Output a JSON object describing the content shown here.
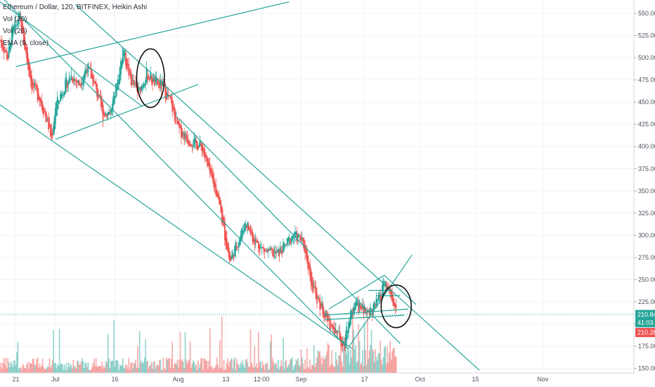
{
  "legend": {
    "title": "Ethereum / Dollar, 120, BITFINEX, Heikin Ashi",
    "studies": [
      "Vol (20)",
      "Vol (20)",
      "EMA (9, close)"
    ]
  },
  "colors": {
    "up": "#26a69a",
    "down": "#ef5350",
    "trendline": "#26a69a",
    "marker": "#111111",
    "price_line": "#26a69a",
    "axis_text": "#4c525e"
  },
  "chart_data": {
    "type": "candlestick",
    "title": "Ethereum / Dollar, 120, BITFINEX, Heikin Ashi",
    "xlabel": "",
    "ylabel": "",
    "ylim": [
      145,
      565
    ],
    "y_ticks": [
      "550.00",
      "525.00",
      "500.00",
      "475.00",
      "450.00",
      "425.00",
      "400.00",
      "375.00",
      "350.00",
      "325.00",
      "300.00",
      "275.00",
      "250.00",
      "225.00",
      "200.00",
      "175.00",
      "150.00"
    ],
    "y_tick_values": [
      550,
      525,
      500,
      475,
      450,
      425,
      400,
      375,
      350,
      325,
      300,
      275,
      250,
      225,
      200,
      175,
      150
    ],
    "x_ticks": [
      "21",
      "Jul",
      "16",
      "Aug",
      "13",
      "12:00",
      "Sep",
      "17",
      "Oct",
      "15",
      "Nov"
    ],
    "x_tick_dates": [
      "2018-06-21",
      "2018-07-01",
      "2018-07-16",
      "2018-08-01",
      "2018-08-13",
      "2018-08-22",
      "2018-09-01",
      "2018-09-17",
      "2018-10-01",
      "2018-10-15",
      "2018-11-01"
    ],
    "x_range": [
      "2018-06-17",
      "2018-11-24"
    ],
    "price_tags": [
      {
        "label": "210.84",
        "value": 210.84,
        "color": "#26a69a"
      },
      {
        "label": "41:03",
        "value": 201.5,
        "color": "#26a69a"
      },
      {
        "label": "210.28",
        "value": 190.5,
        "color": "#ef5350"
      }
    ],
    "price_path": [
      [
        "2018-06-17",
        520
      ],
      [
        "2018-06-19",
        500
      ],
      [
        "2018-06-20",
        528
      ],
      [
        "2018-06-22",
        545
      ],
      [
        "2018-06-23",
        518
      ],
      [
        "2018-06-25",
        470
      ],
      [
        "2018-06-27",
        455
      ],
      [
        "2018-06-29",
        428
      ],
      [
        "2018-06-30",
        408
      ],
      [
        "2018-07-01",
        445
      ],
      [
        "2018-07-03",
        465
      ],
      [
        "2018-07-05",
        480
      ],
      [
        "2018-07-07",
        470
      ],
      [
        "2018-07-09",
        490
      ],
      [
        "2018-07-11",
        468
      ],
      [
        "2018-07-13",
        436
      ],
      [
        "2018-07-15",
        440
      ],
      [
        "2018-07-17",
        480
      ],
      [
        "2018-07-18",
        510
      ],
      [
        "2018-07-20",
        475
      ],
      [
        "2018-07-22",
        460
      ],
      [
        "2018-07-24",
        482
      ],
      [
        "2018-07-26",
        472
      ],
      [
        "2018-07-28",
        468
      ],
      [
        "2018-07-30",
        450
      ],
      [
        "2018-08-01",
        420
      ],
      [
        "2018-08-03",
        410
      ],
      [
        "2018-08-05",
        404
      ],
      [
        "2018-08-07",
        400
      ],
      [
        "2018-08-09",
        368
      ],
      [
        "2018-08-11",
        345
      ],
      [
        "2018-08-12",
        318
      ],
      [
        "2018-08-14",
        270
      ],
      [
        "2018-08-16",
        292
      ],
      [
        "2018-08-18",
        315
      ],
      [
        "2018-08-20",
        296
      ],
      [
        "2018-08-22",
        285
      ],
      [
        "2018-08-24",
        280
      ],
      [
        "2018-08-26",
        279
      ],
      [
        "2018-08-28",
        288
      ],
      [
        "2018-08-30",
        300
      ],
      [
        "2018-09-01",
        295
      ],
      [
        "2018-09-02",
        284
      ],
      [
        "2018-09-04",
        240
      ],
      [
        "2018-09-06",
        220
      ],
      [
        "2018-09-08",
        202
      ],
      [
        "2018-09-10",
        190
      ],
      [
        "2018-09-12",
        178
      ],
      [
        "2018-09-13",
        205
      ],
      [
        "2018-09-15",
        222
      ],
      [
        "2018-09-17",
        214
      ],
      [
        "2018-09-19",
        216
      ],
      [
        "2018-09-21",
        230
      ],
      [
        "2018-09-22",
        246
      ],
      [
        "2018-09-24",
        228
      ],
      [
        "2018-09-25",
        212
      ]
    ],
    "annotations": [
      {
        "type": "trendline",
        "from": [
          "2018-06-21",
          490
        ],
        "to": [
          "2018-08-29",
          563
        ]
      },
      {
        "type": "trendline",
        "from": [
          "2018-07-01",
          408
        ],
        "to": [
          "2018-08-06",
          470
        ]
      },
      {
        "type": "trendline",
        "from": [
          "2018-06-17",
          570
        ],
        "to": [
          "2018-09-13",
          172
        ]
      },
      {
        "type": "trendline",
        "from": [
          "2018-06-17",
          447
        ],
        "to": [
          "2018-09-14",
          172
        ]
      },
      {
        "type": "trendline",
        "from": [
          "2018-06-17",
          563
        ],
        "to": [
          "2018-07-23",
          445
        ]
      },
      {
        "type": "trendline",
        "from": [
          "2018-07-06",
          560
        ],
        "to": [
          "2018-10-16",
          148
        ]
      },
      {
        "type": "trendline",
        "from": [
          "2018-08-01",
          432
        ],
        "to": [
          "2018-09-26",
          178
        ]
      },
      {
        "type": "trendline",
        "from": [
          "2018-09-08",
          217
        ],
        "to": [
          "2018-09-22",
          255
        ]
      },
      {
        "type": "trendline",
        "from": [
          "2018-09-22",
          255
        ],
        "to": [
          "2018-09-30",
          222
        ]
      },
      {
        "type": "trendline",
        "from": [
          "2018-09-13",
          174
        ],
        "to": [
          "2018-09-29",
          278
        ]
      },
      {
        "type": "trendline",
        "from": [
          "2018-09-07",
          210
        ],
        "to": [
          "2018-09-28",
          217
        ]
      },
      {
        "type": "trendline",
        "from": [
          "2018-09-07",
          205
        ],
        "to": [
          "2018-09-27",
          210
        ]
      },
      {
        "type": "trendline",
        "from": [
          "2018-09-18",
          238
        ],
        "to": [
          "2018-09-24",
          238
        ]
      },
      {
        "type": "trendline",
        "from": [
          "2018-09-20",
          232
        ],
        "to": [
          "2018-09-26",
          232
        ]
      },
      {
        "type": "ellipse",
        "center": [
          "2018-07-25",
          477
        ],
        "rx_days": 3.5,
        "ry_value": 33
      },
      {
        "type": "ellipse",
        "center": [
          "2018-09-25",
          220
        ],
        "rx_days": 3.8,
        "ry_value": 24
      }
    ]
  }
}
